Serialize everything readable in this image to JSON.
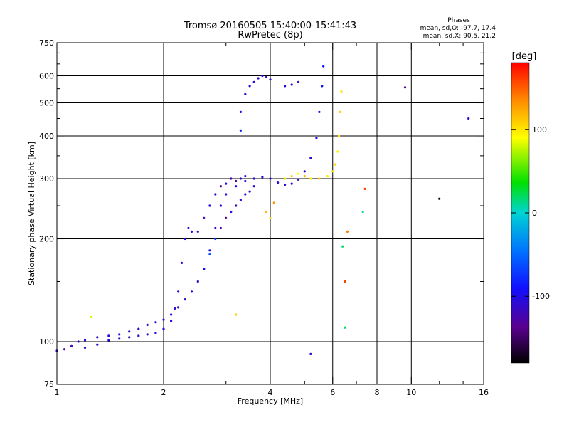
{
  "chart_data": {
    "type": "scatter",
    "title": "Tromsø 20160505 15:40:00-15:41:43",
    "subtitle": "RwPretec (8p)",
    "xlabel": "Frequency [MHz]",
    "ylabel": "Stationary phase Virtual Height [km]",
    "x_scale": "log",
    "y_scale": "log",
    "xlim": [
      1,
      16
    ],
    "ylim": [
      75,
      750
    ],
    "x_ticks": [
      1,
      2,
      4,
      6,
      8,
      10,
      16
    ],
    "x_tick_labels": [
      "1",
      "2",
      "4",
      "6",
      "8",
      "10",
      "16"
    ],
    "x_minor_ticks": [
      3,
      5,
      7,
      9,
      12,
      14
    ],
    "y_ticks": [
      75,
      100,
      200,
      300,
      400,
      500,
      600,
      750
    ],
    "y_tick_labels": [
      "75",
      "100",
      "200",
      "300",
      "400",
      "500",
      "600",
      "750"
    ],
    "y_minor_ticks": [
      150,
      250,
      350,
      450,
      550,
      650,
      700
    ],
    "grid": true,
    "annotation": {
      "title": "Phases",
      "line_o": "mean, sd,O: -97.7, 17.4",
      "line_x": "mean, sd,X:  90.5, 21.2"
    },
    "colorbar": {
      "label": "[deg]",
      "range": [
        -180,
        180
      ],
      "ticks": [
        100,
        0,
        -100
      ],
      "tick_labels": [
        "100",
        "0",
        "-100"
      ]
    },
    "series": [
      {
        "points": [
          [
            1.0,
            94,
            -110
          ],
          [
            1.05,
            95,
            -130
          ],
          [
            1.1,
            97,
            -115
          ],
          [
            1.15,
            100,
            -120
          ],
          [
            1.2,
            101,
            -105
          ],
          [
            1.3,
            103,
            -110
          ],
          [
            1.4,
            104,
            -115
          ],
          [
            1.5,
            105,
            -100
          ],
          [
            1.6,
            107,
            -110
          ],
          [
            1.7,
            109,
            -112
          ],
          [
            1.8,
            112,
            -110
          ],
          [
            1.9,
            114,
            -105
          ],
          [
            2.0,
            116,
            -110
          ],
          [
            2.1,
            120,
            -100
          ],
          [
            2.2,
            126,
            -105
          ],
          [
            2.3,
            133,
            -110
          ],
          [
            2.4,
            140,
            -100
          ],
          [
            2.5,
            150,
            -110
          ],
          [
            2.6,
            163,
            -95
          ],
          [
            2.7,
            185,
            -100
          ],
          [
            2.8,
            215,
            -105
          ],
          [
            2.9,
            250,
            -110
          ],
          [
            3.0,
            270,
            -100
          ],
          [
            3.2,
            285,
            -105
          ],
          [
            3.4,
            295,
            -110
          ],
          [
            3.6,
            300,
            -108
          ],
          [
            3.8,
            303,
            -110
          ],
          [
            4.0,
            300,
            -112
          ],
          [
            4.2,
            292,
            -110
          ],
          [
            4.4,
            288,
            -108
          ],
          [
            4.6,
            290,
            -110
          ],
          [
            4.8,
            298,
            -110
          ],
          [
            5.0,
            315,
            -110
          ],
          [
            5.2,
            345,
            -110
          ],
          [
            5.4,
            395,
            -100
          ],
          [
            5.5,
            470,
            -95
          ],
          [
            5.6,
            560,
            -90
          ],
          [
            5.65,
            640,
            -85
          ]
        ]
      },
      {
        "points": [
          [
            1.2,
            96,
            -120
          ],
          [
            1.3,
            98,
            -115
          ],
          [
            1.4,
            101,
            -105
          ],
          [
            1.5,
            102,
            -110
          ],
          [
            1.6,
            103,
            -120
          ],
          [
            1.7,
            104,
            -110
          ],
          [
            1.8,
            105,
            -108
          ],
          [
            1.9,
            106,
            -105
          ],
          [
            2.0,
            109,
            -110
          ],
          [
            2.1,
            115,
            -100
          ],
          [
            2.15,
            125,
            -105
          ],
          [
            2.2,
            140,
            -110
          ],
          [
            2.25,
            170,
            -100
          ],
          [
            2.3,
            200,
            -105
          ],
          [
            2.35,
            215,
            -110
          ],
          [
            2.4,
            210,
            -100
          ]
        ]
      },
      {
        "points": [
          [
            2.5,
            210,
            -100
          ],
          [
            2.6,
            230,
            -120
          ],
          [
            2.7,
            250,
            -100
          ],
          [
            2.8,
            270,
            -110
          ],
          [
            2.9,
            285,
            -130
          ],
          [
            3.0,
            290,
            -100
          ],
          [
            3.1,
            300,
            -120
          ],
          [
            3.2,
            295,
            -140
          ],
          [
            3.3,
            300,
            -120
          ],
          [
            3.4,
            305,
            -100
          ],
          [
            2.7,
            180,
            -60
          ],
          [
            2.8,
            200,
            -70
          ],
          [
            2.9,
            215,
            -130
          ],
          [
            3.0,
            230,
            -140
          ],
          [
            3.1,
            240,
            -110
          ],
          [
            3.2,
            250,
            -120
          ],
          [
            3.3,
            260,
            -100
          ],
          [
            3.4,
            270,
            -110
          ],
          [
            3.5,
            275,
            -120
          ],
          [
            3.6,
            285,
            -110
          ]
        ]
      },
      {
        "points": [
          [
            3.3,
            415,
            -80
          ],
          [
            3.3,
            470,
            -90
          ],
          [
            3.4,
            530,
            -110
          ],
          [
            3.5,
            560,
            -110
          ],
          [
            3.6,
            575,
            -105
          ],
          [
            3.7,
            590,
            -110
          ],
          [
            3.8,
            600,
            -110
          ],
          [
            3.9,
            595,
            -105
          ],
          [
            4.0,
            585,
            -110
          ],
          [
            4.4,
            560,
            -110
          ],
          [
            4.6,
            565,
            -105
          ],
          [
            4.8,
            575,
            -110
          ]
        ]
      },
      {
        "points": [
          [
            4.4,
            300,
            100
          ],
          [
            4.6,
            305,
            110
          ],
          [
            4.8,
            310,
            90
          ],
          [
            5.0,
            305,
            120
          ],
          [
            5.2,
            300,
            100
          ],
          [
            5.5,
            300,
            110
          ],
          [
            5.8,
            305,
            95
          ],
          [
            6.0,
            315,
            100
          ],
          [
            6.1,
            330,
            105
          ],
          [
            6.2,
            360,
            95
          ],
          [
            6.25,
            400,
            100
          ],
          [
            6.3,
            470,
            110
          ],
          [
            6.35,
            540,
            100
          ],
          [
            3.9,
            240,
            120
          ],
          [
            4.0,
            230,
            110
          ],
          [
            4.1,
            255,
            130
          ]
        ]
      },
      {
        "points": [
          [
            6.5,
            150,
            160
          ],
          [
            6.6,
            210,
            140
          ],
          [
            7.4,
            280,
            160
          ],
          [
            12.0,
            262,
            -170
          ],
          [
            9.6,
            555,
            -140
          ],
          [
            14.5,
            450,
            -110
          ],
          [
            5.2,
            92,
            -110
          ],
          [
            6.4,
            190,
            20
          ],
          [
            6.5,
            110,
            20
          ],
          [
            7.3,
            240,
            10
          ],
          [
            3.2,
            120,
            110
          ],
          [
            1.25,
            118,
            80
          ]
        ]
      }
    ]
  }
}
